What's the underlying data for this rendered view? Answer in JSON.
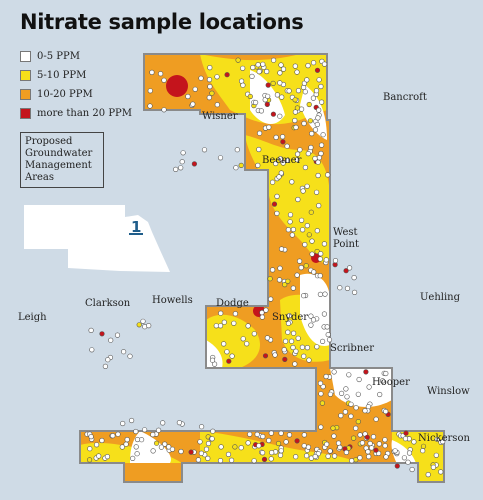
{
  "title": "Nitrate sample locations",
  "legend": {
    "items": [
      {
        "label": "0-5 PPM",
        "color": "#ffffff"
      },
      {
        "label": "5-10 PPM",
        "color": "#f6e01a"
      },
      {
        "label": "10-20 PPM",
        "color": "#ef9d22"
      },
      {
        "label": "more than 20 PPM",
        "color": "#c4141c"
      }
    ],
    "gma_label": "Proposed Groundwater Management Areas"
  },
  "inset_marker": "1",
  "places": [
    {
      "name": "Bancroft",
      "key": "bancroft"
    },
    {
      "name": "Wisner",
      "key": "wisner"
    },
    {
      "name": "Beemer",
      "key": "beemer"
    },
    {
      "name": "West",
      "key": "west"
    },
    {
      "name": "Point",
      "key": "point"
    },
    {
      "name": "Uehling",
      "key": "uehling"
    },
    {
      "name": "Clarkson",
      "key": "clarkson"
    },
    {
      "name": "Howells",
      "key": "howells"
    },
    {
      "name": "Dodge",
      "key": "dodge"
    },
    {
      "name": "Snyder",
      "key": "snyder"
    },
    {
      "name": "Leigh",
      "key": "leigh"
    },
    {
      "name": "Scribner",
      "key": "scribner"
    },
    {
      "name": "Hooper",
      "key": "hooper"
    },
    {
      "name": "Winslow",
      "key": "winslow"
    },
    {
      "name": "Nickerson",
      "key": "nickerson"
    }
  ],
  "colors": {
    "background": "#cfdbe6",
    "gma_outline": "#8a8a8a",
    "sample_point": "#ffffff"
  }
}
